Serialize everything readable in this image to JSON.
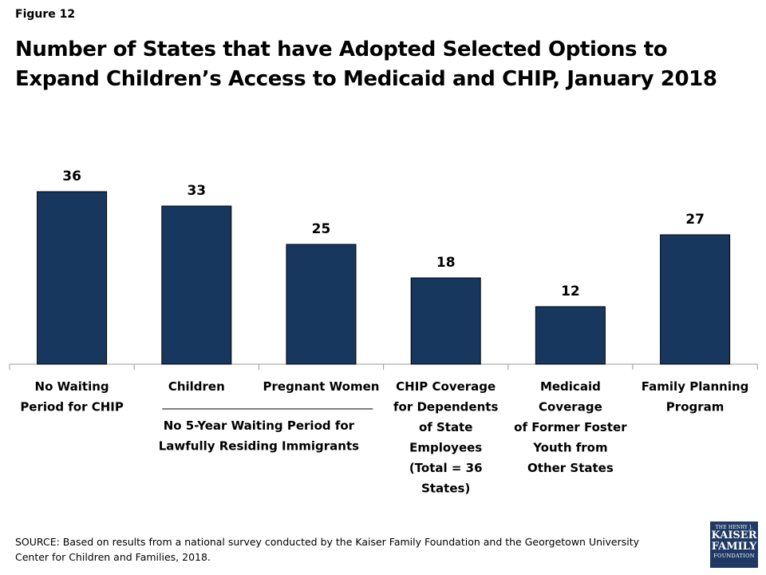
{
  "figure_label": "Figure 12",
  "title_lines": [
    "Number of States that have Adopted Selected Options to",
    "Expand Children’s Access to Medicaid and CHIP, January 2018"
  ],
  "chart_data": {
    "type": "bar",
    "title": "Number of States that have Adopted Selected Options to Expand Children’s Access to Medicaid and CHIP, January 2018",
    "categories": [
      "No Waiting Period for CHIP",
      "Children",
      "Pregnant Women",
      "CHIP Coverage for Dependents of State Employees (Total = 36 States)",
      "Medicaid Coverage of Former Foster Youth from Other States",
      "Family Planning Program"
    ],
    "category_label_lines": [
      [
        "No Waiting",
        "Period for CHIP"
      ],
      [
        "Children"
      ],
      [
        "Pregnant Women"
      ],
      [
        "CHIP Coverage",
        "for Dependents",
        "of State",
        "Employees",
        "(Total = 36",
        "States)"
      ],
      [
        "Medicaid",
        "Coverage",
        "of Former Foster",
        "Youth from",
        "Other States"
      ],
      [
        "Family Planning",
        "Program"
      ]
    ],
    "values": [
      36,
      33,
      25,
      18,
      12,
      27
    ],
    "ylim": [
      0,
      36
    ],
    "bar_color": "#17375e",
    "data_labels": [
      "36",
      "33",
      "25",
      "18",
      "12",
      "27"
    ],
    "group_bracket": {
      "label_lines": [
        "No 5-Year Waiting Period for",
        "Lawfully Residing Immigrants"
      ],
      "spans_categories": [
        "Children",
        "Pregnant Women"
      ]
    },
    "grid": false,
    "legend": "none"
  },
  "source_lines": [
    "SOURCE: Based on results from a national survey conducted by the Kaiser Family Foundation and the Georgetown University",
    "Center for Children and Families, 2018."
  ],
  "logo": {
    "line1": "THE HENRY J.",
    "line2": "KAISER",
    "line3": "FAMILY",
    "line4": "FOUNDATION"
  }
}
